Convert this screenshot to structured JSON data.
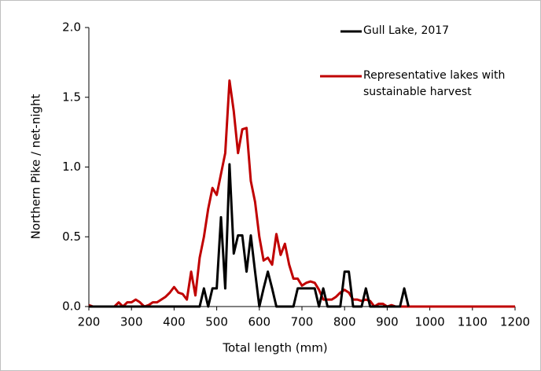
{
  "chart_data": {
    "type": "line",
    "x_label": "Total length (mm)",
    "y_label": "Northern Pike / net-night",
    "x": [
      200,
      210,
      220,
      230,
      240,
      250,
      260,
      270,
      280,
      290,
      300,
      310,
      320,
      330,
      340,
      350,
      360,
      370,
      380,
      390,
      400,
      410,
      420,
      430,
      440,
      450,
      460,
      470,
      480,
      490,
      500,
      510,
      520,
      530,
      540,
      550,
      560,
      570,
      580,
      590,
      600,
      610,
      620,
      630,
      640,
      650,
      660,
      670,
      680,
      690,
      700,
      710,
      720,
      730,
      740,
      750,
      760,
      770,
      780,
      790,
      800,
      810,
      820,
      830,
      840,
      850,
      860,
      870,
      880,
      890,
      900,
      910,
      920,
      930,
      940,
      950,
      960,
      970,
      980,
      990,
      1000,
      1010,
      1020,
      1030,
      1040,
      1050,
      1060,
      1070,
      1080,
      1090,
      1100,
      1110,
      1120,
      1130,
      1140,
      1150,
      1160,
      1170,
      1180,
      1190,
      1200
    ],
    "series": [
      {
        "name": "Gull Lake, 2017",
        "color": "#000000",
        "values": [
          0,
          0,
          0,
          0,
          0,
          0,
          0,
          0,
          0,
          0,
          0,
          0,
          0,
          0,
          0,
          0,
          0,
          0,
          0,
          0,
          0,
          0,
          0,
          0,
          0,
          0,
          0,
          0.13,
          0,
          0.13,
          0.13,
          0.64,
          0.13,
          1.02,
          0.38,
          0.51,
          0.51,
          0.25,
          0.51,
          0.25,
          0,
          0.13,
          0.25,
          0.13,
          0,
          0,
          0,
          0,
          0,
          0.13,
          0.13,
          0.13,
          0.13,
          0.13,
          0,
          0.13,
          0,
          0,
          0,
          0,
          0.25,
          0.25,
          0,
          0,
          0,
          0.13,
          0,
          0,
          0,
          0,
          0,
          0,
          0,
          0,
          0.13,
          0,
          null,
          null,
          null,
          null,
          null,
          null,
          null,
          null,
          null,
          null,
          null,
          null,
          null,
          null,
          null,
          null,
          null,
          null,
          null,
          null,
          null,
          null,
          null,
          null,
          null
        ]
      },
      {
        "name": "Representative lakes with sustainable harvest",
        "color": "#c00000",
        "values": [
          0.01,
          0,
          0,
          0,
          0,
          0,
          0,
          0.03,
          0,
          0.03,
          0.03,
          0.05,
          0.03,
          0,
          0.01,
          0.03,
          0.03,
          0.05,
          0.07,
          0.1,
          0.14,
          0.1,
          0.09,
          0.05,
          0.25,
          0.08,
          0.35,
          0.5,
          0.7,
          0.85,
          0.8,
          0.95,
          1.1,
          1.62,
          1.4,
          1.1,
          1.27,
          1.28,
          0.9,
          0.75,
          0.5,
          0.33,
          0.35,
          0.3,
          0.52,
          0.37,
          0.45,
          0.3,
          0.2,
          0.2,
          0.15,
          0.17,
          0.18,
          0.17,
          0.12,
          0.05,
          0.05,
          0.05,
          0.07,
          0.1,
          0.12,
          0.1,
          0.05,
          0.05,
          0.04,
          0.05,
          0.04,
          0,
          0.02,
          0.02,
          0,
          0.01,
          0,
          0,
          0,
          0,
          0,
          0,
          0,
          0,
          0,
          0,
          0,
          0,
          0,
          0,
          0,
          0,
          0,
          0,
          0,
          0,
          0,
          0,
          0,
          0,
          0,
          0,
          0,
          0,
          0
        ]
      }
    ],
    "xlim": [
      200,
      1200
    ],
    "xticks": [
      200,
      300,
      400,
      500,
      600,
      700,
      800,
      900,
      1000,
      1100,
      1200
    ],
    "ylim": [
      0,
      2
    ],
    "yticks": [
      {
        "value": 0,
        "label": "0.0"
      },
      {
        "value": 0.5,
        "label": "0.5"
      },
      {
        "value": 1,
        "label": "1.0"
      },
      {
        "value": 1.5,
        "label": "1.5"
      },
      {
        "value": 2,
        "label": "2.0"
      }
    ],
    "grid": false
  }
}
